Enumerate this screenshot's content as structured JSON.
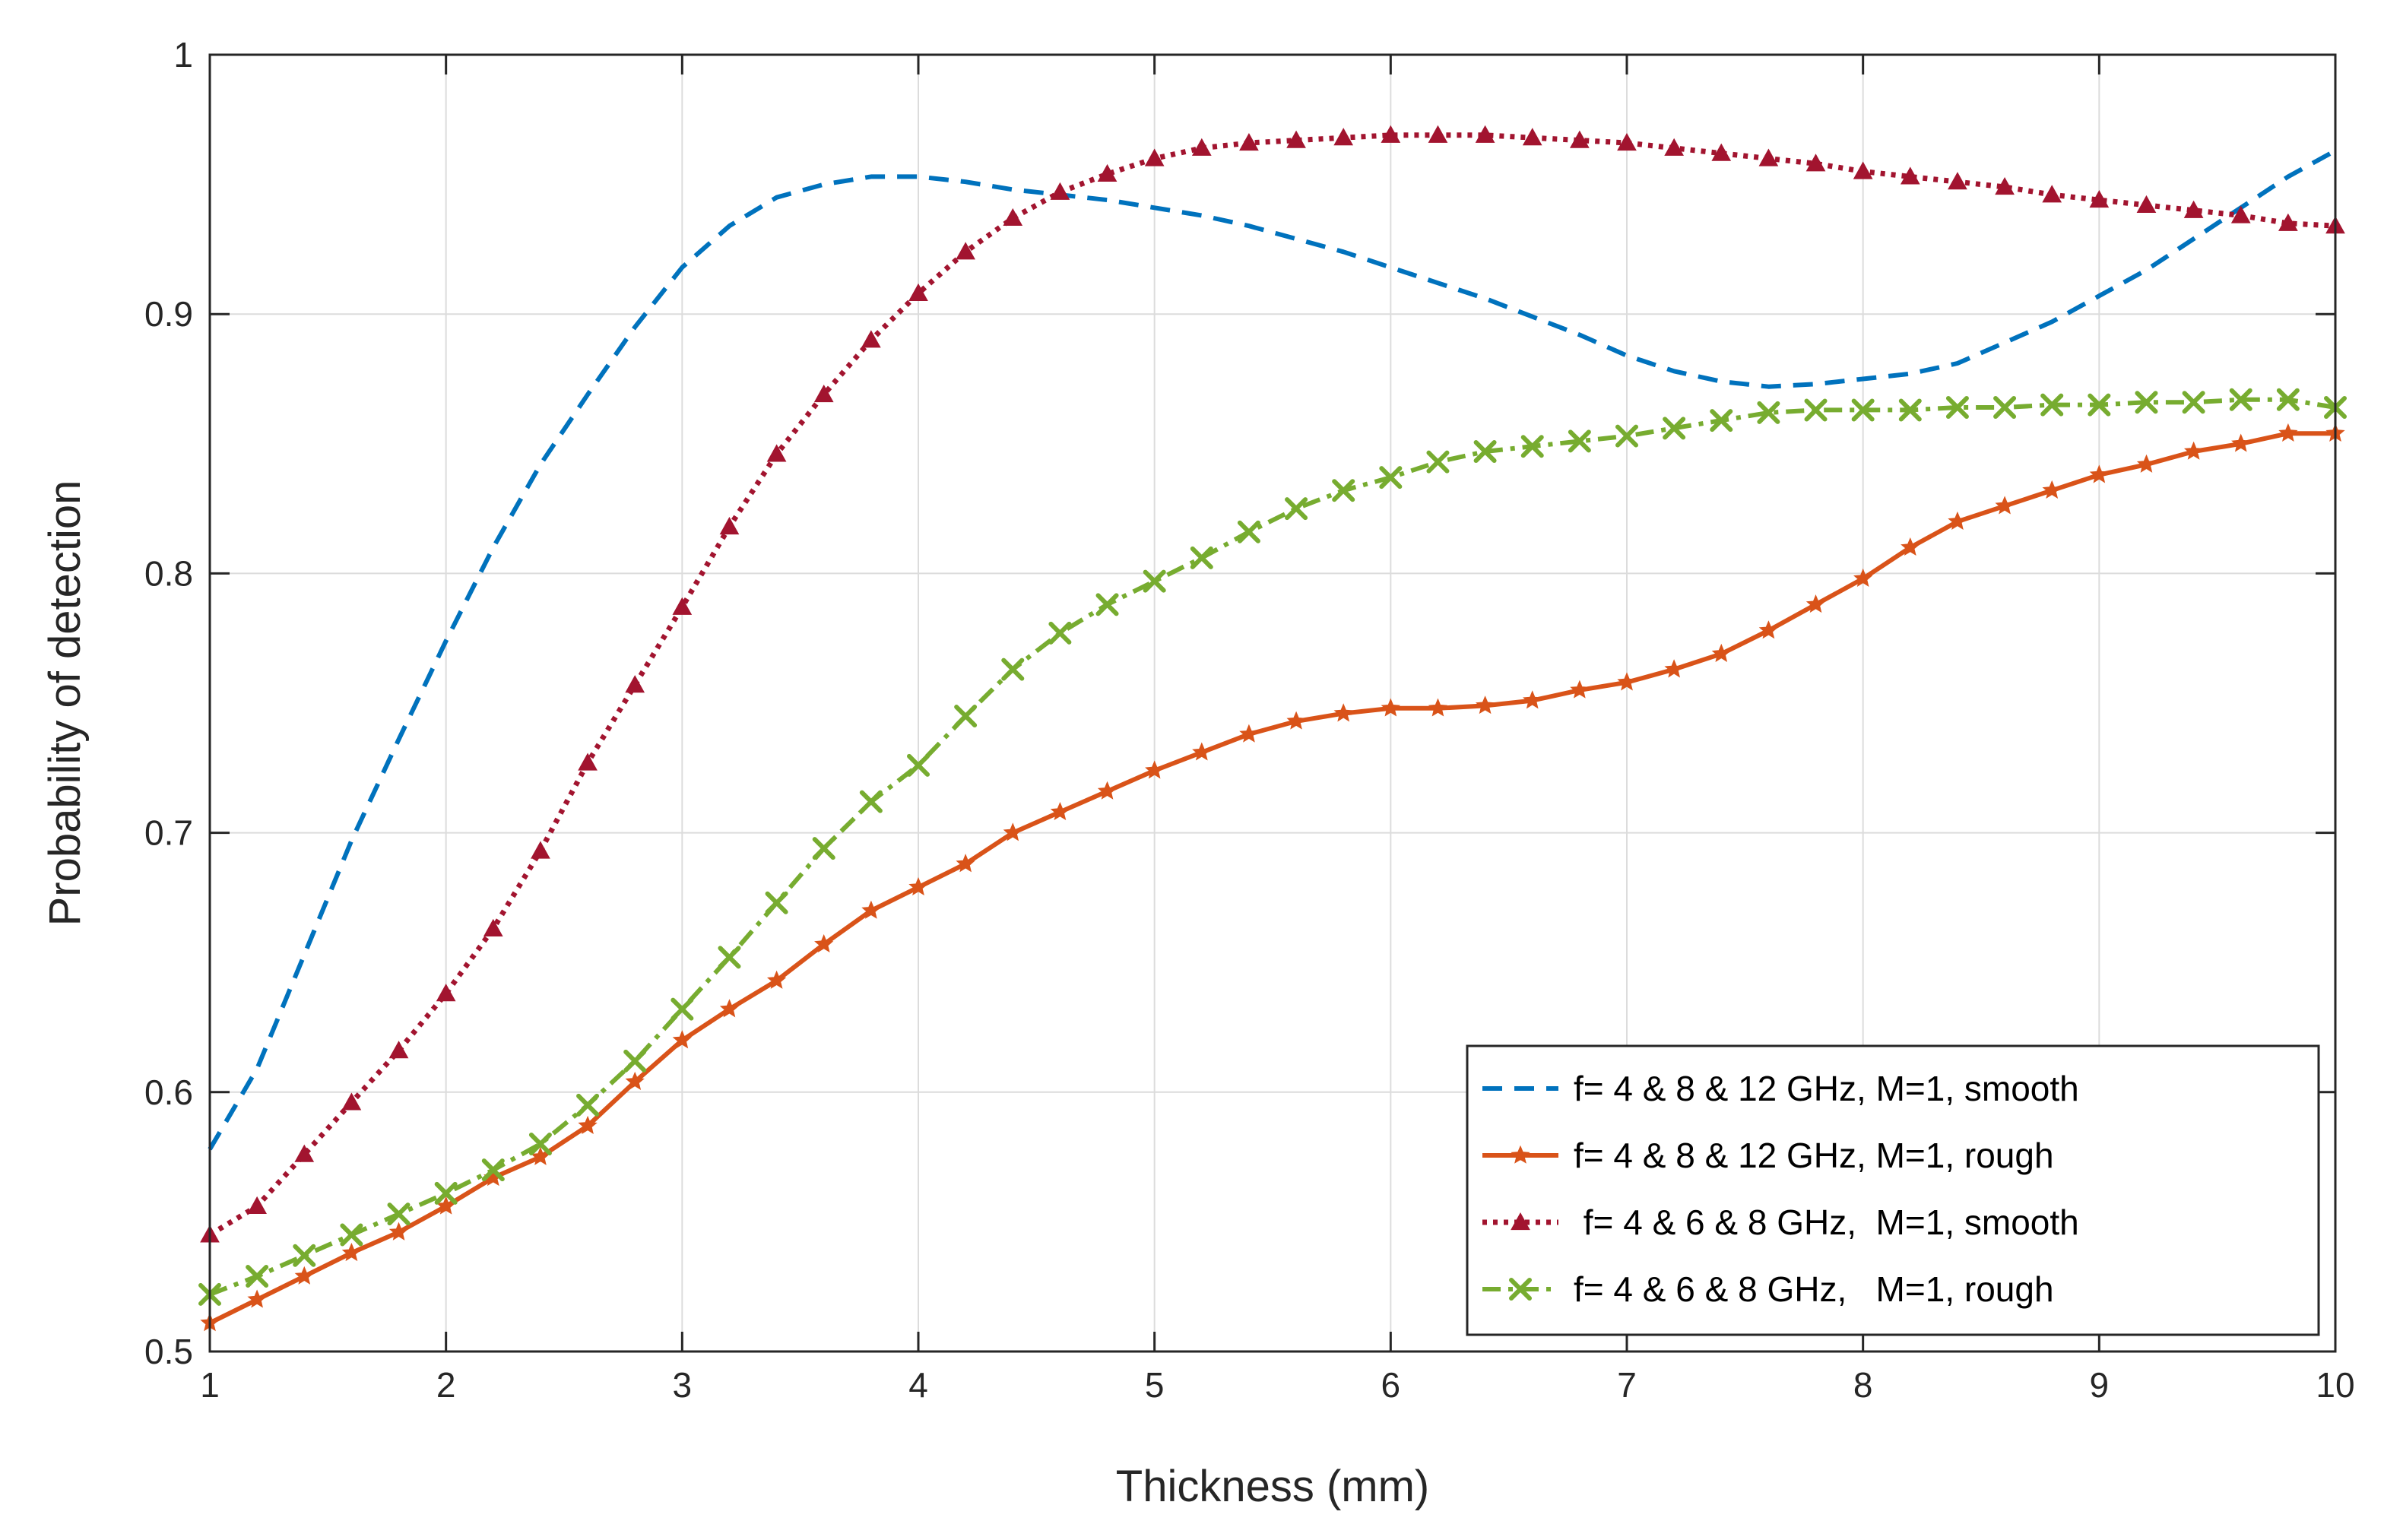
{
  "chart_data": {
    "type": "line",
    "title": "",
    "xlabel": "Thickness (mm)",
    "ylabel": "Probability of detection",
    "xlim": [
      1,
      10
    ],
    "ylim": [
      0.5,
      1
    ],
    "xticks": [
      "1",
      "2",
      "3",
      "4",
      "5",
      "6",
      "7",
      "8",
      "9",
      "10"
    ],
    "yticks": [
      "0.5",
      "0.6",
      "0.7",
      "0.8",
      "0.9",
      "1"
    ],
    "grid": true,
    "legend_position": "bottom-right",
    "series": [
      {
        "name": "f= 4 & 8 & 12 GHz, M=1, smooth",
        "color": "#0072BD",
        "style": "dashed",
        "marker": "none",
        "x": [
          1,
          1.2,
          1.4,
          1.6,
          1.8,
          2,
          2.2,
          2.4,
          2.6,
          2.8,
          3,
          3.2,
          3.4,
          3.6,
          3.8,
          4,
          4.2,
          4.4,
          4.6,
          4.8,
          5,
          5.2,
          5.4,
          5.6,
          5.8,
          6,
          6.2,
          6.4,
          6.6,
          6.8,
          7,
          7.2,
          7.4,
          7.6,
          7.8,
          8,
          8.2,
          8.4,
          8.6,
          8.8,
          9,
          9.2,
          9.4,
          9.6,
          9.8,
          10
        ],
        "y": [
          0.578,
          0.609,
          0.653,
          0.697,
          0.736,
          0.774,
          0.81,
          0.842,
          0.869,
          0.895,
          0.918,
          0.934,
          0.945,
          0.95,
          0.953,
          0.953,
          0.951,
          0.948,
          0.946,
          0.944,
          0.941,
          0.938,
          0.934,
          0.929,
          0.924,
          0.918,
          0.912,
          0.906,
          0.899,
          0.892,
          0.884,
          0.878,
          0.874,
          0.872,
          0.873,
          0.875,
          0.877,
          0.881,
          0.889,
          0.897,
          0.907,
          0.917,
          0.929,
          0.941,
          0.953,
          0.963
        ]
      },
      {
        "name": "f= 4 & 8 & 12 GHz, M=1, rough",
        "color": "#D95319",
        "style": "solid",
        "marker": "star",
        "x": [
          1,
          1.2,
          1.4,
          1.6,
          1.8,
          2,
          2.2,
          2.4,
          2.6,
          2.8,
          3,
          3.2,
          3.4,
          3.6,
          3.8,
          4,
          4.2,
          4.4,
          4.6,
          4.8,
          5,
          5.2,
          5.4,
          5.6,
          5.8,
          6,
          6.2,
          6.4,
          6.6,
          6.8,
          7,
          7.2,
          7.4,
          7.6,
          7.8,
          8,
          8.2,
          8.4,
          8.6,
          8.8,
          9,
          9.2,
          9.4,
          9.6,
          9.8,
          10
        ],
        "y": [
          0.511,
          0.52,
          0.529,
          0.538,
          0.546,
          0.556,
          0.567,
          0.575,
          0.587,
          0.604,
          0.62,
          0.632,
          0.643,
          0.657,
          0.67,
          0.679,
          0.688,
          0.7,
          0.708,
          0.716,
          0.724,
          0.731,
          0.738,
          0.743,
          0.746,
          0.748,
          0.748,
          0.749,
          0.751,
          0.755,
          0.758,
          0.763,
          0.769,
          0.778,
          0.788,
          0.798,
          0.81,
          0.82,
          0.826,
          0.832,
          0.838,
          0.842,
          0.847,
          0.85,
          0.854,
          0.854
        ]
      },
      {
        "name": " f= 4 & 6 & 8 GHz,  M=1, smooth",
        "color": "#A2142F",
        "style": "dotted",
        "marker": "triangle",
        "x": [
          1,
          1.2,
          1.4,
          1.6,
          1.8,
          2,
          2.2,
          2.4,
          2.6,
          2.8,
          3,
          3.2,
          3.4,
          3.6,
          3.8,
          4,
          4.2,
          4.4,
          4.6,
          4.8,
          5,
          5.2,
          5.4,
          5.6,
          5.8,
          6,
          6.2,
          6.4,
          6.6,
          6.8,
          7,
          7.2,
          7.4,
          7.6,
          7.8,
          8,
          8.2,
          8.4,
          8.6,
          8.8,
          9,
          9.2,
          9.4,
          9.6,
          9.8,
          10
        ],
        "y": [
          0.545,
          0.556,
          0.576,
          0.596,
          0.616,
          0.638,
          0.663,
          0.693,
          0.727,
          0.757,
          0.787,
          0.818,
          0.846,
          0.869,
          0.89,
          0.908,
          0.924,
          0.937,
          0.947,
          0.954,
          0.96,
          0.964,
          0.966,
          0.967,
          0.968,
          0.969,
          0.969,
          0.969,
          0.968,
          0.967,
          0.966,
          0.964,
          0.962,
          0.96,
          0.958,
          0.955,
          0.953,
          0.951,
          0.949,
          0.946,
          0.944,
          0.942,
          0.94,
          0.938,
          0.935,
          0.934
        ]
      },
      {
        "name": "f= 4 & 6 & 8 GHz,   M=1, rough",
        "color": "#77AC30",
        "style": "dash-dot",
        "marker": "x",
        "x": [
          1,
          1.2,
          1.4,
          1.6,
          1.8,
          2,
          2.2,
          2.4,
          2.6,
          2.8,
          3,
          3.2,
          3.4,
          3.6,
          3.8,
          4,
          4.2,
          4.4,
          4.6,
          4.8,
          5,
          5.2,
          5.4,
          5.6,
          5.8,
          6,
          6.2,
          6.4,
          6.6,
          6.8,
          7,
          7.2,
          7.4,
          7.6,
          7.8,
          8,
          8.2,
          8.4,
          8.6,
          8.8,
          9,
          9.2,
          9.4,
          9.6,
          9.8,
          10
        ],
        "y": [
          0.522,
          0.529,
          0.537,
          0.545,
          0.553,
          0.561,
          0.57,
          0.58,
          0.595,
          0.612,
          0.632,
          0.652,
          0.673,
          0.694,
          0.712,
          0.726,
          0.745,
          0.763,
          0.777,
          0.788,
          0.797,
          0.806,
          0.816,
          0.825,
          0.832,
          0.837,
          0.843,
          0.847,
          0.849,
          0.851,
          0.853,
          0.856,
          0.859,
          0.862,
          0.863,
          0.863,
          0.863,
          0.864,
          0.864,
          0.865,
          0.865,
          0.866,
          0.866,
          0.867,
          0.867,
          0.864
        ]
      }
    ]
  }
}
